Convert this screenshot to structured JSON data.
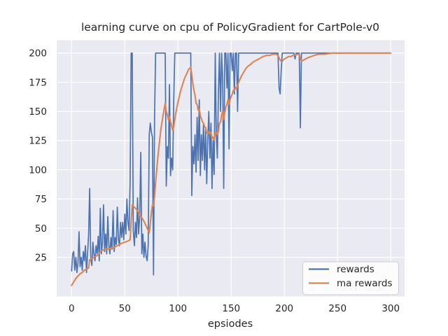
{
  "chart_data": {
    "type": "line",
    "title": "learning curve on cpu of PolicyGradient for CartPole-v0",
    "xlabel": "epsiodes",
    "ylabel": "",
    "x_unit": "episode index (0-300)",
    "xticks": [
      0,
      50,
      100,
      150,
      200,
      250,
      300
    ],
    "yticks": [
      25,
      50,
      75,
      100,
      125,
      150,
      175,
      200
    ],
    "xlim": [
      -14,
      313
    ],
    "ylim": [
      -8.5,
      211
    ],
    "grid": true,
    "legend_position": "lower right",
    "colors": {
      "plot_background": "#eaeaf2",
      "grid": "#ffffff",
      "text": "#262626",
      "legend_border": "#cccccc",
      "rewards": "#4c72b0",
      "ma_rewards": "#dd8452"
    },
    "series": [
      {
        "name": "rewards",
        "color": "#4c72b0",
        "x_is_index": true,
        "values": [
          13,
          28,
          30,
          14,
          25,
          12,
          20,
          47,
          17,
          25,
          14,
          30,
          22,
          35,
          12,
          28,
          45,
          84,
          25,
          18,
          38,
          28,
          22,
          35,
          28,
          43,
          22,
          67,
          28,
          38,
          70,
          30,
          45,
          28,
          60,
          35,
          28,
          42,
          32,
          65,
          30,
          42,
          36,
          68,
          40,
          35,
          55,
          42,
          55,
          40,
          62,
          45,
          75,
          55,
          48,
          90,
          200,
          200,
          48,
          35,
          55,
          42,
          76,
          45,
          60,
          115,
          28,
          45,
          25,
          38,
          26,
          22,
          35,
          130,
          140,
          132,
          128,
          10,
          145,
          200,
          200,
          200,
          200,
          200,
          200,
          200,
          200,
          200,
          200,
          86,
          120,
          110,
          173,
          95,
          110,
          100,
          160,
          200,
          200,
          200,
          200,
          200,
          200,
          200,
          200,
          200,
          200,
          200,
          200,
          200,
          200,
          200,
          200,
          78,
          120,
          105,
          130,
          98,
          145,
          108,
          160,
          95,
          130,
          108,
          140,
          100,
          135,
          88,
          125,
          150,
          110,
          140,
          84,
          125,
          96,
          200,
          130,
          110,
          165,
          200,
          150,
          200,
          178,
          84,
          200,
          200,
          170,
          200,
          118,
          200,
          200,
          185,
          200,
          165,
          200,
          200,
          150,
          200,
          200,
          200,
          200,
          200,
          200,
          200,
          200,
          200,
          200,
          200,
          200,
          200,
          200,
          200,
          200,
          200,
          200,
          200,
          200,
          200,
          200,
          200,
          200,
          200,
          200,
          200,
          200,
          200,
          200,
          200,
          200,
          200,
          200,
          200,
          200,
          200,
          200,
          170,
          165,
          185,
          200,
          200,
          200,
          200,
          200,
          200,
          200,
          200,
          200,
          200,
          200,
          200,
          195,
          200,
          200,
          200,
          200,
          136,
          200,
          200,
          200,
          200,
          200,
          200,
          200,
          200,
          200,
          200,
          200,
          200,
          200,
          200,
          200,
          200,
          200,
          200,
          200,
          200,
          200,
          200,
          200,
          200,
          200,
          200,
          200,
          200,
          200,
          200,
          200,
          200,
          200,
          200,
          200,
          200,
          200,
          200,
          200,
          200,
          200,
          200,
          200,
          200,
          200,
          200,
          200,
          200,
          200,
          200,
          200,
          200,
          200,
          200,
          200,
          200,
          200,
          200,
          200,
          200,
          200,
          200,
          200,
          200,
          200,
          200,
          200,
          200,
          200,
          200,
          200,
          200,
          200,
          200,
          200,
          200,
          200,
          200,
          200,
          200,
          200,
          200,
          200,
          200,
          200
        ]
      },
      {
        "name": "ma rewards",
        "color": "#dd8452",
        "points": [
          [
            0,
            1
          ],
          [
            2,
            4
          ],
          [
            4,
            7
          ],
          [
            6,
            9
          ],
          [
            8,
            11
          ],
          [
            10,
            12
          ],
          [
            12,
            14
          ],
          [
            14,
            15
          ],
          [
            16,
            16
          ],
          [
            17,
            23
          ],
          [
            19,
            24
          ],
          [
            21,
            25
          ],
          [
            23,
            26
          ],
          [
            25,
            27
          ],
          [
            27,
            30
          ],
          [
            29,
            31
          ],
          [
            31,
            32
          ],
          [
            34,
            32
          ],
          [
            37,
            33
          ],
          [
            39,
            33
          ],
          [
            41,
            34
          ],
          [
            43,
            35
          ],
          [
            45,
            36
          ],
          [
            47,
            37
          ],
          [
            50,
            38
          ],
          [
            53,
            39
          ],
          [
            55,
            40
          ],
          [
            56,
            56
          ],
          [
            57,
            70
          ],
          [
            58,
            69
          ],
          [
            60,
            67
          ],
          [
            62,
            65
          ],
          [
            64,
            62
          ],
          [
            66,
            59
          ],
          [
            68,
            56
          ],
          [
            70,
            52
          ],
          [
            72,
            48
          ],
          [
            73,
            46
          ],
          [
            74,
            54
          ],
          [
            75,
            63
          ],
          [
            76,
            70
          ],
          [
            77,
            69
          ],
          [
            78,
            77
          ],
          [
            79,
            89
          ],
          [
            80,
            100
          ],
          [
            81,
            110
          ],
          [
            82,
            119
          ],
          [
            83,
            127
          ],
          [
            84,
            135
          ],
          [
            85,
            141
          ],
          [
            86,
            147
          ],
          [
            87,
            152
          ],
          [
            88,
            157
          ],
          [
            89,
            150
          ],
          [
            90,
            147
          ],
          [
            91,
            143
          ],
          [
            92,
            146
          ],
          [
            93,
            141
          ],
          [
            94,
            138
          ],
          [
            95,
            134
          ],
          [
            96,
            137
          ],
          [
            97,
            143
          ],
          [
            98,
            149
          ],
          [
            100,
            158
          ],
          [
            102,
            166
          ],
          [
            104,
            172
          ],
          [
            106,
            178
          ],
          [
            108,
            182
          ],
          [
            110,
            186
          ],
          [
            112,
            188
          ],
          [
            113,
            181
          ],
          [
            114,
            174
          ],
          [
            115,
            168
          ],
          [
            116,
            164
          ],
          [
            117,
            157
          ],
          [
            118,
            156
          ],
          [
            119,
            151
          ],
          [
            120,
            152
          ],
          [
            121,
            146
          ],
          [
            122,
            144
          ],
          [
            123,
            141
          ],
          [
            124,
            140
          ],
          [
            125,
            137
          ],
          [
            126,
            136
          ],
          [
            127,
            132
          ],
          [
            128,
            131
          ],
          [
            129,
            133
          ],
          [
            130,
            131
          ],
          [
            131,
            132
          ],
          [
            132,
            127
          ],
          [
            133,
            128
          ],
          [
            134,
            125
          ],
          [
            135,
            132
          ],
          [
            136,
            132
          ],
          [
            137,
            130
          ],
          [
            138,
            133
          ],
          [
            139,
            140
          ],
          [
            140,
            141
          ],
          [
            141,
            147
          ],
          [
            142,
            150
          ],
          [
            143,
            143
          ],
          [
            144,
            149
          ],
          [
            145,
            154
          ],
          [
            146,
            156
          ],
          [
            147,
            160
          ],
          [
            148,
            156
          ],
          [
            149,
            160
          ],
          [
            150,
            163
          ],
          [
            151,
            165
          ],
          [
            152,
            168
          ],
          [
            153,
            168
          ],
          [
            154,
            171
          ],
          [
            155,
            169
          ],
          [
            156,
            172
          ],
          [
            157,
            175
          ],
          [
            158,
            177
          ],
          [
            160,
            181
          ],
          [
            162,
            184
          ],
          [
            164,
            187
          ],
          [
            166,
            189
          ],
          [
            168,
            190
          ],
          [
            170,
            192
          ],
          [
            172,
            193
          ],
          [
            174,
            194
          ],
          [
            176,
            195
          ],
          [
            178,
            196
          ],
          [
            180,
            197
          ],
          [
            183,
            198
          ],
          [
            186,
            198
          ],
          [
            189,
            199
          ],
          [
            193,
            199
          ],
          [
            195,
            196
          ],
          [
            196,
            194
          ],
          [
            197,
            193
          ],
          [
            198,
            193
          ],
          [
            200,
            195
          ],
          [
            202,
            196
          ],
          [
            204,
            197
          ],
          [
            206,
            197
          ],
          [
            208,
            198
          ],
          [
            210,
            198
          ],
          [
            212,
            199
          ],
          [
            214,
            199
          ],
          [
            215,
            195
          ],
          [
            216,
            193
          ],
          [
            218,
            194
          ],
          [
            220,
            195
          ],
          [
            222,
            196
          ],
          [
            225,
            197
          ],
          [
            228,
            198
          ],
          [
            232,
            199
          ],
          [
            238,
            199
          ],
          [
            245,
            200
          ],
          [
            260,
            200
          ],
          [
            280,
            200
          ],
          [
            300,
            200
          ]
        ]
      }
    ],
    "legend": {
      "entries": [
        "rewards",
        "ma rewards"
      ]
    }
  }
}
